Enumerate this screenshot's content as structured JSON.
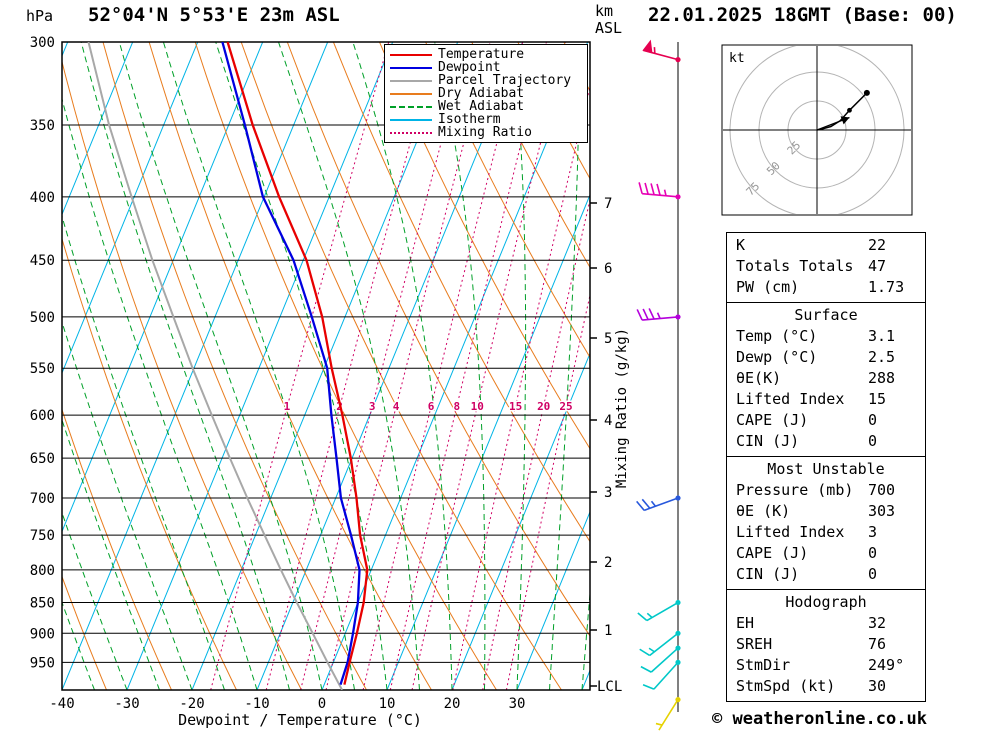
{
  "header": {
    "station": "52°04'N 5°53'E 23m ASL",
    "datetime": "22.01.2025 18GMT (Base: 00)"
  },
  "units": {
    "pressure": "hPa",
    "altitude": "km",
    "altitude_datum": "ASL"
  },
  "axes": {
    "pressure_ticks": [
      300,
      350,
      400,
      450,
      500,
      550,
      600,
      650,
      700,
      750,
      800,
      850,
      900,
      950
    ],
    "temp_ticks": [
      -40,
      -30,
      -20,
      -10,
      0,
      10,
      20,
      30
    ],
    "km_ticks": [
      7,
      6,
      5,
      4,
      3,
      2,
      1
    ],
    "lcl_label": "LCL",
    "x_axis_label": "Dewpoint / Temperature (°C)",
    "mixing_ratio_axis_label": "Mixing Ratio (g/kg)",
    "mixing_ratio_values": [
      1,
      2,
      3,
      4,
      6,
      8,
      10,
      15,
      20,
      25
    ]
  },
  "legend": {
    "items": [
      {
        "label": "Temperature",
        "color": "#e80000",
        "style": "solid"
      },
      {
        "label": "Dewpoint",
        "color": "#0000e0",
        "style": "solid"
      },
      {
        "label": "Parcel Trajectory",
        "color": "#a8a8a8",
        "style": "solid"
      },
      {
        "label": "Dry Adiabat",
        "color": "#e87c1e",
        "style": "solid"
      },
      {
        "label": "Wet Adiabat",
        "color": "#00a028",
        "style": "dashed"
      },
      {
        "label": "Isotherm",
        "color": "#00b4e6",
        "style": "solid"
      },
      {
        "label": "Mixing Ratio",
        "color": "#d00064",
        "style": "dotted"
      }
    ]
  },
  "chart_data": {
    "type": "skewt_log_p",
    "pressure_range_hPa": [
      300,
      1000
    ],
    "temp_range_C": [
      -40,
      38
    ],
    "series": [
      {
        "name": "Temperature",
        "color": "#e80000",
        "points": [
          [
            990,
            3.1
          ],
          [
            950,
            2.5
          ],
          [
            900,
            1.8
          ],
          [
            850,
            0.9
          ],
          [
            800,
            -0.6
          ],
          [
            750,
            -3.9
          ],
          [
            700,
            -6.8
          ],
          [
            650,
            -10.2
          ],
          [
            600,
            -14.2
          ],
          [
            550,
            -18.8
          ],
          [
            500,
            -23.5
          ],
          [
            450,
            -29.5
          ],
          [
            400,
            -37.7
          ],
          [
            350,
            -46.3
          ],
          [
            300,
            -55.4
          ]
        ]
      },
      {
        "name": "Dewpoint",
        "color": "#0000e0",
        "points": [
          [
            990,
            2.5
          ],
          [
            950,
            2.2
          ],
          [
            900,
            1.2
          ],
          [
            850,
            0.0
          ],
          [
            800,
            -1.8
          ],
          [
            750,
            -5.3
          ],
          [
            700,
            -9.2
          ],
          [
            650,
            -12.4
          ],
          [
            600,
            -15.9
          ],
          [
            550,
            -19.5
          ],
          [
            500,
            -25.1
          ],
          [
            450,
            -31.5
          ],
          [
            400,
            -40.2
          ],
          [
            350,
            -47.5
          ],
          [
            300,
            -56.2
          ]
        ]
      },
      {
        "name": "Parcel Trajectory",
        "color": "#a8a8a8",
        "points": [
          [
            1000,
            3.1
          ],
          [
            950,
            -0.9
          ],
          [
            900,
            -5.0
          ],
          [
            850,
            -9.4
          ],
          [
            800,
            -13.9
          ],
          [
            750,
            -18.6
          ],
          [
            700,
            -23.6
          ],
          [
            650,
            -28.8
          ],
          [
            600,
            -34.3
          ],
          [
            550,
            -40.2
          ],
          [
            500,
            -46.4
          ],
          [
            450,
            -53.2
          ],
          [
            400,
            -60.4
          ],
          [
            350,
            -68.4
          ],
          [
            300,
            -76.8
          ]
        ]
      }
    ],
    "style": {
      "isotherm_color": "#00b4e6",
      "dry_adiabat_color": "#e87c1e",
      "wet_adiabat_color": "#00a028",
      "mixing_ratio_color": "#d00064"
    }
  },
  "wind_barbs": [
    {
      "p": 310,
      "speed_kt": 55,
      "dir_deg": 285,
      "color": "#e60050"
    },
    {
      "p": 400,
      "speed_kt": 45,
      "dir_deg": 275,
      "color": "#e600b4"
    },
    {
      "p": 500,
      "speed_kt": 35,
      "dir_deg": 265,
      "color": "#b400dc"
    },
    {
      "p": 700,
      "speed_kt": 25,
      "dir_deg": 250,
      "color": "#2858dc"
    },
    {
      "p": 850,
      "speed_kt": 15,
      "dir_deg": 240,
      "color": "#00c8c8"
    },
    {
      "p": 900,
      "speed_kt": 15,
      "dir_deg": 232,
      "color": "#00c8c8"
    },
    {
      "p": 925,
      "speed_kt": 10,
      "dir_deg": 228,
      "color": "#00c8c8"
    },
    {
      "p": 950,
      "speed_kt": 10,
      "dir_deg": 222,
      "color": "#00c8c8"
    },
    {
      "p": 1018,
      "speed_kt": 5,
      "dir_deg": 212,
      "color": "#e6d200"
    }
  ],
  "hodograph": {
    "unit_label": "kt",
    "rings_kt": [
      25,
      50,
      75
    ],
    "trace_kt": [
      [
        0,
        0
      ],
      [
        5,
        1
      ],
      [
        12,
        3
      ],
      [
        20,
        8
      ],
      [
        28,
        17
      ],
      [
        43,
        32
      ]
    ],
    "storm_motion_kt": [
      28,
      10.8
    ]
  },
  "stats": {
    "groups": [
      {
        "title": "",
        "rows": [
          [
            "K",
            "22"
          ],
          [
            "Totals Totals",
            "47"
          ],
          [
            "PW (cm)",
            "1.73"
          ]
        ]
      },
      {
        "title": "Surface",
        "rows": [
          [
            "Temp (°C)",
            "3.1"
          ],
          [
            "Dewp (°C)",
            "2.5"
          ],
          [
            "θE(K)",
            "288"
          ],
          [
            "Lifted Index",
            "15"
          ],
          [
            "CAPE (J)",
            "0"
          ],
          [
            "CIN (J)",
            "0"
          ]
        ]
      },
      {
        "title": "Most Unstable",
        "rows": [
          [
            "Pressure (mb)",
            "700"
          ],
          [
            "θE (K)",
            "303"
          ],
          [
            "Lifted Index",
            "3"
          ],
          [
            "CAPE (J)",
            "0"
          ],
          [
            "CIN (J)",
            "0"
          ]
        ]
      },
      {
        "title": "Hodograph",
        "rows": [
          [
            "EH",
            "32"
          ],
          [
            "SREH",
            "76"
          ],
          [
            "StmDir",
            "249°"
          ],
          [
            "StmSpd (kt)",
            "30"
          ]
        ]
      }
    ]
  },
  "footer": {
    "credit": "© weatheronline.co.uk"
  }
}
